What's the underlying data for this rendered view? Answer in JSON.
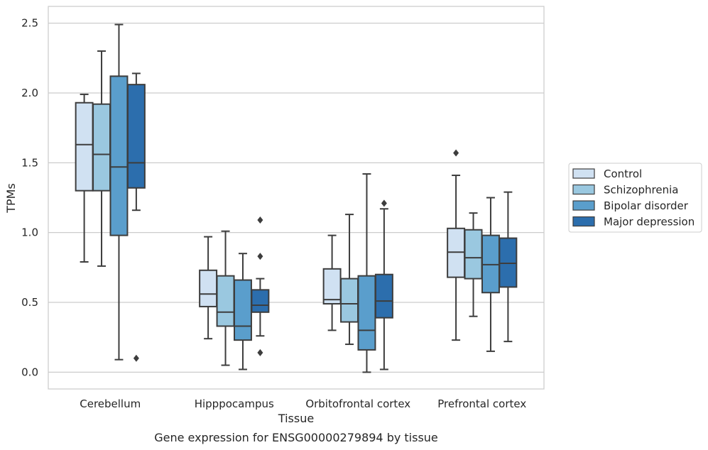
{
  "chart_data": {
    "type": "box",
    "caption": "Gene expression for ENSG00000279894 by tissue",
    "xlabel": "Tissue",
    "ylabel": "TPMs",
    "ylim": [
      -0.12,
      2.62
    ],
    "yticks": [
      0.0,
      0.5,
      1.0,
      1.5,
      2.0,
      2.5
    ],
    "ytick_labels": [
      "0.0",
      "0.5",
      "1.0",
      "1.5",
      "2.0",
      "2.5"
    ],
    "grid": "horizontal",
    "legend_position": "right",
    "categories": [
      "Cerebellum",
      "Hipppocampus",
      "Orbitofrontal cortex",
      "Prefrontal cortex"
    ],
    "series": [
      {
        "name": "Control",
        "color": "#d0e1f2",
        "boxes": [
          {
            "whisker_low": 0.79,
            "q1": 1.3,
            "median": 1.63,
            "q3": 1.93,
            "whisker_high": 1.99,
            "outliers": []
          },
          {
            "whisker_low": 0.24,
            "q1": 0.47,
            "median": 0.56,
            "q3": 0.73,
            "whisker_high": 0.97,
            "outliers": []
          },
          {
            "whisker_low": 0.3,
            "q1": 0.49,
            "median": 0.52,
            "q3": 0.74,
            "whisker_high": 0.98,
            "outliers": []
          },
          {
            "whisker_low": 0.23,
            "q1": 0.68,
            "median": 0.86,
            "q3": 1.03,
            "whisker_high": 1.41,
            "outliers": [
              1.57
            ]
          }
        ]
      },
      {
        "name": "Schizophrenia",
        "color": "#9ac8e0",
        "boxes": [
          {
            "whisker_low": 0.76,
            "q1": 1.3,
            "median": 1.56,
            "q3": 1.92,
            "whisker_high": 2.3,
            "outliers": []
          },
          {
            "whisker_low": 0.05,
            "q1": 0.33,
            "median": 0.43,
            "q3": 0.69,
            "whisker_high": 1.01,
            "outliers": []
          },
          {
            "whisker_low": 0.2,
            "q1": 0.36,
            "median": 0.49,
            "q3": 0.67,
            "whisker_high": 1.13,
            "outliers": []
          },
          {
            "whisker_low": 0.4,
            "q1": 0.67,
            "median": 0.82,
            "q3": 1.02,
            "whisker_high": 1.14,
            "outliers": []
          }
        ]
      },
      {
        "name": "Bipolar disorder",
        "color": "#5a9ecc",
        "boxes": [
          {
            "whisker_low": 0.09,
            "q1": 0.98,
            "median": 1.47,
            "q3": 2.12,
            "whisker_high": 2.49,
            "outliers": []
          },
          {
            "whisker_low": 0.02,
            "q1": 0.23,
            "median": 0.33,
            "q3": 0.66,
            "whisker_high": 0.85,
            "outliers": []
          },
          {
            "whisker_low": 0.0,
            "q1": 0.16,
            "median": 0.3,
            "q3": 0.69,
            "whisker_high": 1.42,
            "outliers": []
          },
          {
            "whisker_low": 0.15,
            "q1": 0.57,
            "median": 0.77,
            "q3": 0.98,
            "whisker_high": 1.25,
            "outliers": []
          }
        ]
      },
      {
        "name": "Major depression",
        "color": "#2c6ead",
        "boxes": [
          {
            "whisker_low": 1.16,
            "q1": 1.32,
            "median": 1.5,
            "q3": 2.06,
            "whisker_high": 2.14,
            "outliers": [
              0.1
            ]
          },
          {
            "whisker_low": 0.26,
            "q1": 0.43,
            "median": 0.48,
            "q3": 0.59,
            "whisker_high": 0.67,
            "outliers": [
              1.09,
              0.83,
              0.14
            ]
          },
          {
            "whisker_low": 0.02,
            "q1": 0.39,
            "median": 0.51,
            "q3": 0.7,
            "whisker_high": 1.17,
            "outliers": [
              1.21
            ]
          },
          {
            "whisker_low": 0.22,
            "q1": 0.61,
            "median": 0.78,
            "q3": 0.96,
            "whisker_high": 1.29,
            "outliers": []
          }
        ]
      }
    ]
  }
}
